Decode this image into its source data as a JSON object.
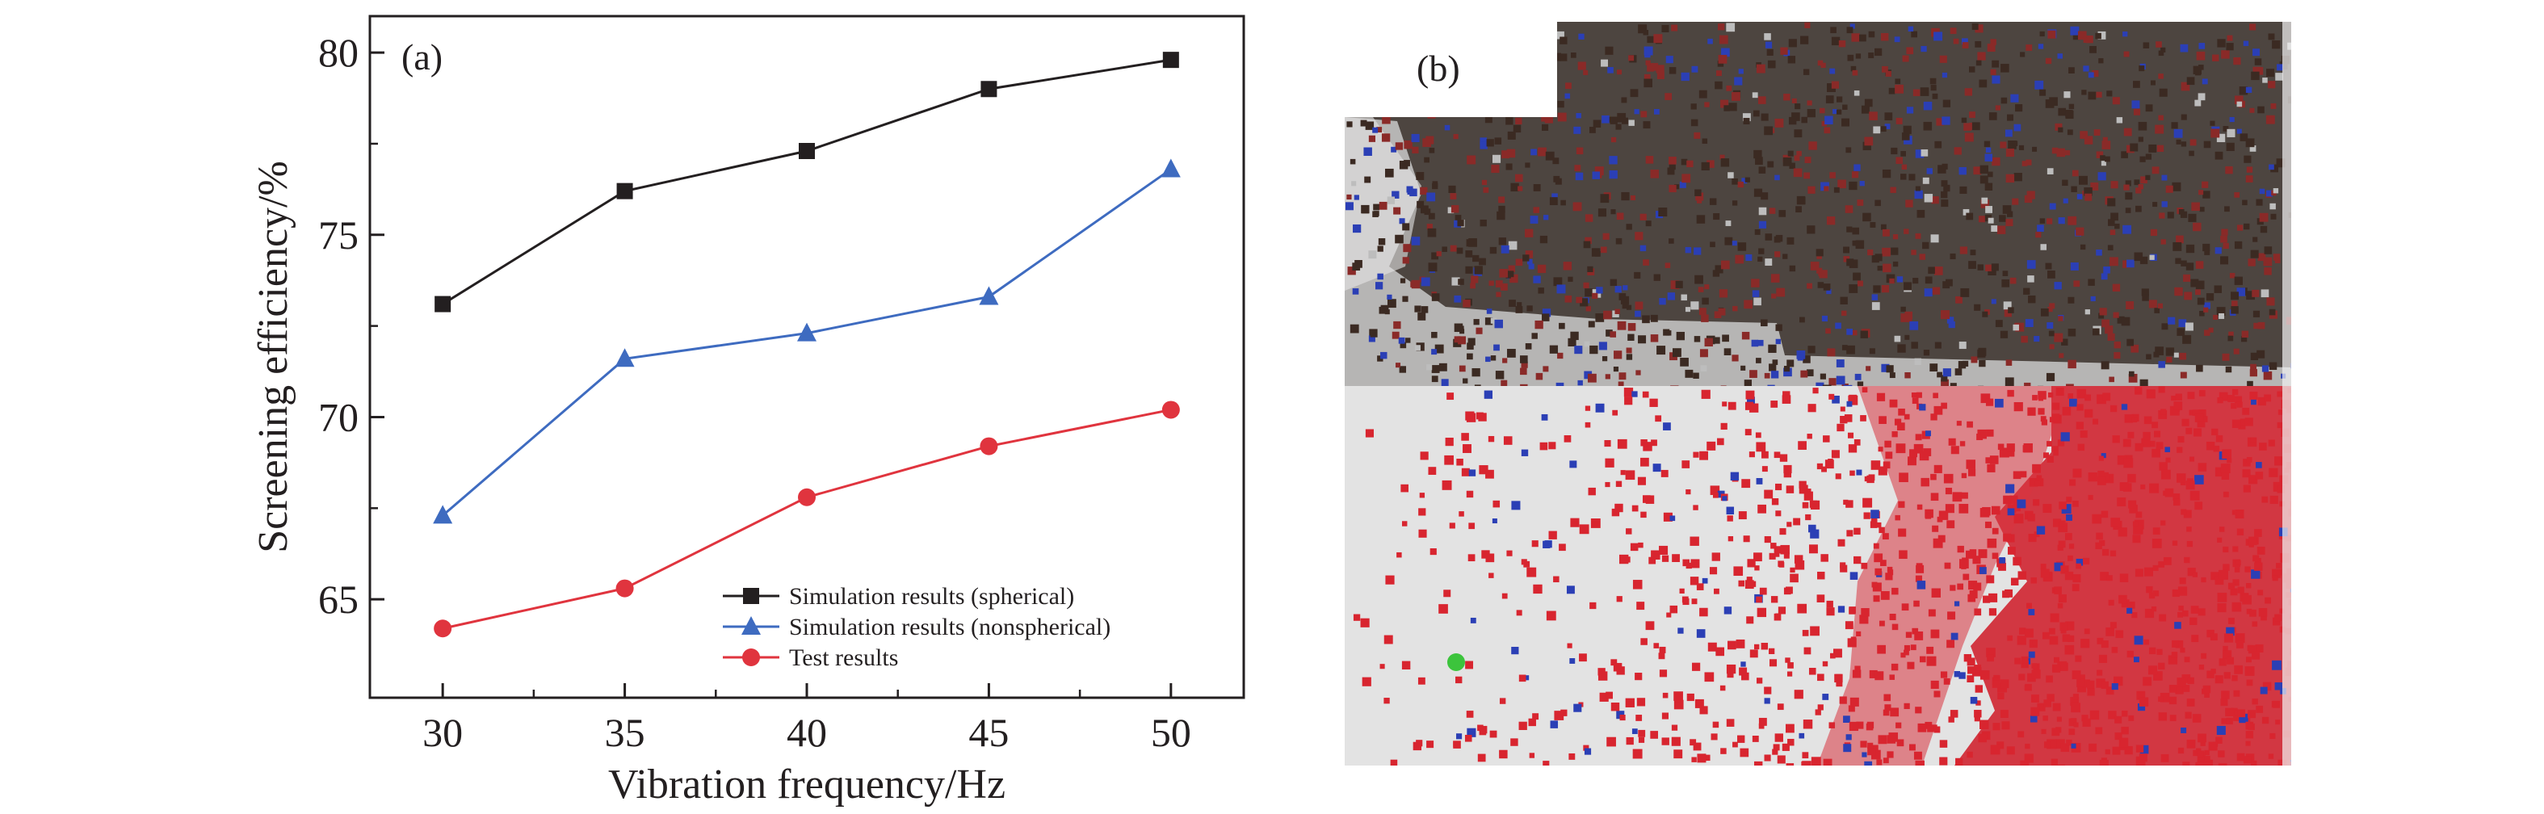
{
  "chart_data": {
    "type": "line",
    "panel_label": "(a)",
    "xlabel": "Vibration frequency/Hz",
    "ylabel": "Screening efficiency/%",
    "x": [
      30,
      35,
      40,
      45,
      50
    ],
    "xlim": [
      28,
      52
    ],
    "ylim": [
      62.3,
      81
    ],
    "xticks": [
      30,
      35,
      40,
      45,
      50
    ],
    "yticks": [
      65,
      70,
      75,
      80
    ],
    "grid": false,
    "legend_position": "bottom-right",
    "series": [
      {
        "name": "Simulation results (spherical)",
        "color": "#231f20",
        "marker": "square",
        "values": [
          73.1,
          76.2,
          77.3,
          79.0,
          79.8
        ]
      },
      {
        "name": "Simulation results (nonspherical)",
        "color": "#3e6bc0",
        "marker": "triangle",
        "values": [
          67.3,
          71.6,
          72.3,
          73.3,
          76.8
        ]
      },
      {
        "name": "Test results",
        "color": "#e0343e",
        "marker": "circle",
        "values": [
          64.2,
          65.3,
          67.8,
          69.2,
          70.2
        ]
      }
    ]
  },
  "photo_panel": {
    "label": "(b)",
    "colors": {
      "upper_background": "#5a504a",
      "lower_background": "#dcdcdc",
      "particle_dark": "#3b2a22",
      "particle_red": "#d8252f",
      "particle_blue": "#2b3fb5",
      "particle_green": "#3cc43c"
    }
  }
}
